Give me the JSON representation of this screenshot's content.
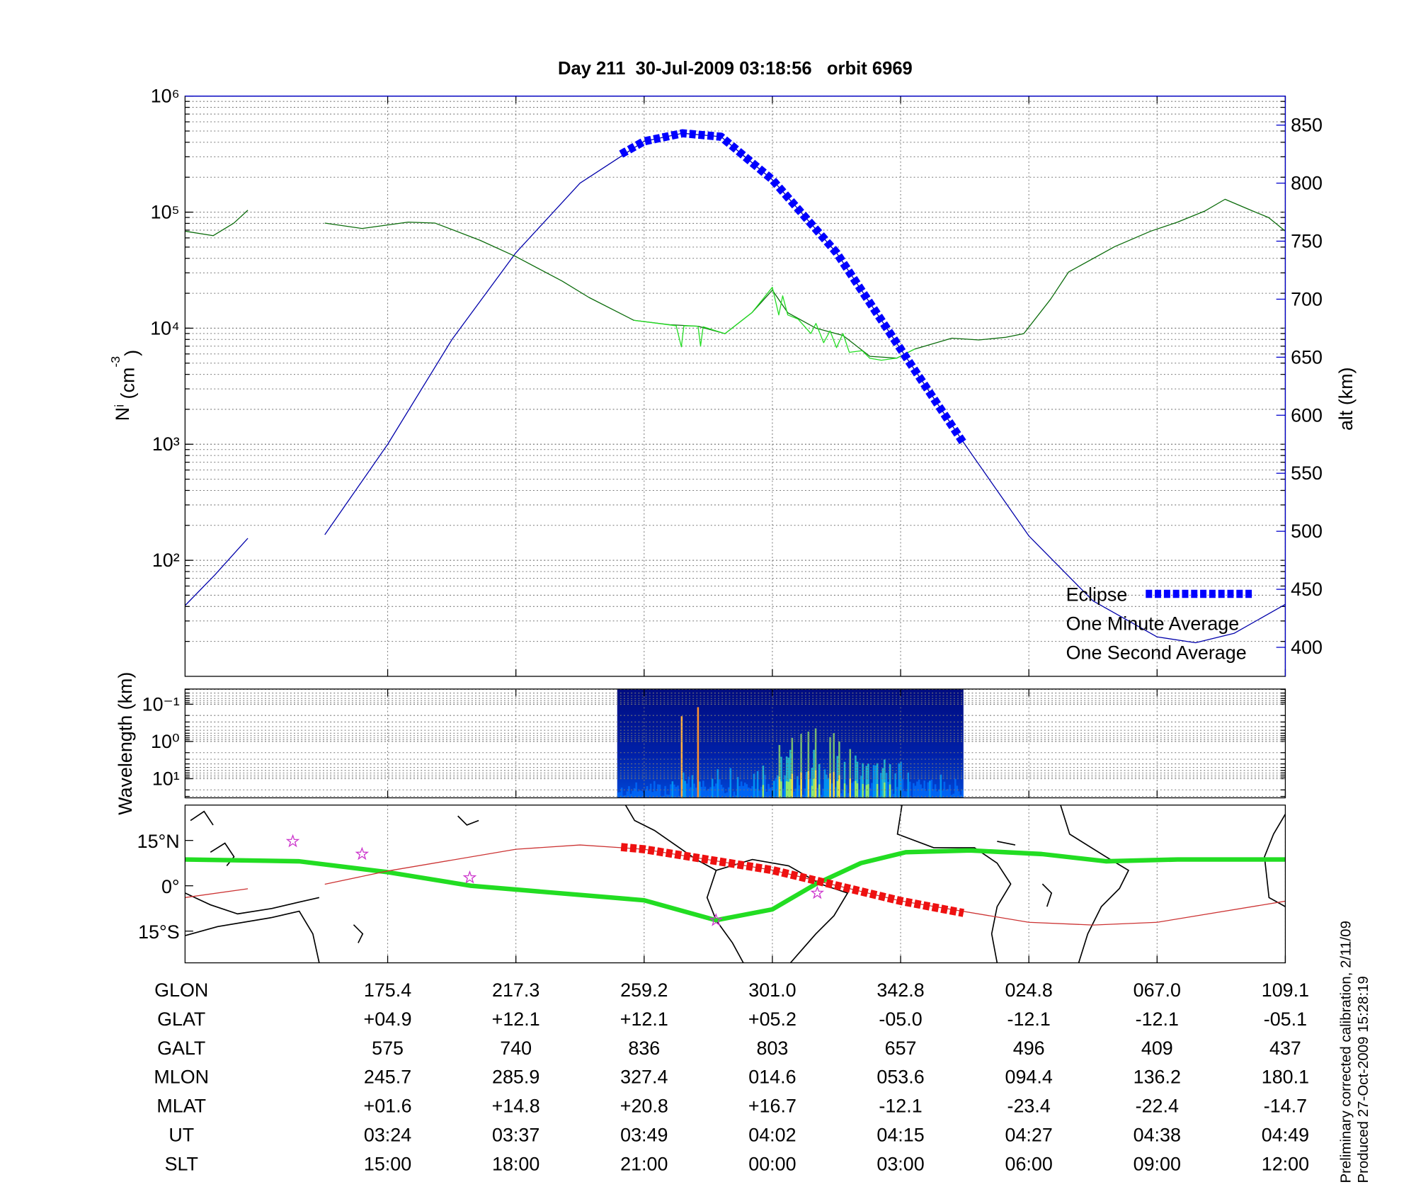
{
  "title": "Day 211  30-Jul-2009 03:18:56   orbit 6969",
  "chart_data": [
    {
      "type": "line",
      "ylabel_parts": [
        "N",
        "i",
        " (cm",
        "-3",
        ")"
      ],
      "y2label": "alt (km)",
      "xlim": [
        -1.58,
        7
      ],
      "xticks": [
        0,
        1,
        2,
        3,
        4,
        5,
        6,
        7
      ],
      "ylim": [
        10,
        1000000
      ],
      "log_y": true,
      "yticks": [
        {
          "value": 100,
          "label": "10²"
        },
        {
          "value": 1000,
          "label": "10³"
        },
        {
          "value": 10000,
          "label": "10⁴"
        },
        {
          "value": 100000,
          "label": "10⁵"
        },
        {
          "value": 1000000,
          "label": "10⁶"
        }
      ],
      "y2lim": [
        375,
        875
      ],
      "y2ticks": [
        400,
        450,
        500,
        550,
        600,
        650,
        700,
        750,
        800,
        850
      ],
      "grid": true,
      "legend": "lower right",
      "series": [
        {
          "name": "Eclipse",
          "color": "#0000ff",
          "style": "squares",
          "axis": "y2",
          "x": [
            1.82,
            2,
            2.3,
            2.6,
            3,
            3.5,
            4,
            4.49
          ],
          "values": [
            825,
            836,
            843,
            840,
            803,
            740,
            657,
            576
          ]
        },
        {
          "name": "One Minute Average",
          "color": "#0a6b0a",
          "text_color": "#000000",
          "x": [
            -1.58,
            -1.36,
            -1.2,
            -1.09,
            -0.8,
            -0.49,
            -0.2,
            0.16,
            0.37,
            0.72,
            1.0,
            1.36,
            1.57,
            1.92,
            2.2,
            2.42,
            2.63,
            2.84,
            3.0,
            3.12,
            3.34,
            3.55,
            3.76,
            3.97,
            4.11,
            4.4,
            4.61,
            4.82,
            4.96,
            5.17,
            5.31,
            5.67,
            5.95,
            6.16,
            6.37,
            6.53,
            6.73,
            6.87,
            7.0
          ],
          "values": [
            68600,
            62700,
            80500,
            104000,
            null,
            80500,
            72300,
            82000,
            80500,
            57300,
            41400,
            25500,
            18400,
            11700,
            10700,
            10400,
            8980,
            13600,
            21300,
            13600,
            10000,
            8660,
            5730,
            5520,
            6610,
            8200,
            7910,
            8350,
            8980,
            17800,
            30500,
            50500,
            68600,
            82000,
            102000,
            129000,
            104000,
            89800,
            68600
          ]
        },
        {
          "name": "One Second Average",
          "color": "#22dd22",
          "x": [
            1.92,
            2.25,
            2.29,
            2.31,
            2.42,
            2.44,
            2.46,
            2.63,
            2.84,
            3.0,
            3.05,
            3.08,
            3.12,
            3.2,
            3.3,
            3.34,
            3.4,
            3.45,
            3.5,
            3.55,
            3.6,
            3.7,
            3.76,
            3.85,
            3.97,
            4.11
          ],
          "values": [
            11700,
            10500,
            6900,
            10500,
            10400,
            7000,
            10300,
            8980,
            13600,
            22500,
            13000,
            19000,
            13000,
            12000,
            9000,
            11000,
            7500,
            9500,
            6800,
            9000,
            6200,
            6400,
            5500,
            5300,
            5520,
            6610
          ]
        },
        {
          "color": "#0000aa",
          "axis": "y2",
          "x": [
            -1.58,
            -1.35,
            -1.09,
            -0.8,
            -0.49,
            0,
            0.5,
            1,
            1.5,
            2,
            2.3,
            2.6,
            3,
            3.5,
            4,
            4.5,
            5,
            5.5,
            6,
            6.3,
            6.6,
            7
          ],
          "values": [
            436,
            462,
            494,
            null,
            497,
            575,
            665,
            740,
            800,
            836,
            843,
            840,
            803,
            740,
            657,
            575,
            496,
            440,
            409,
            404,
            412,
            437
          ]
        }
      ]
    },
    {
      "type": "heatmap",
      "ylabel": "Wavelength (km)",
      "xlim": [
        -1.58,
        7
      ],
      "xticks": [
        0,
        1,
        2,
        3,
        4,
        5,
        6,
        7
      ],
      "ylim": [
        32.7,
        0.039
      ],
      "log_y": true,
      "yticks": [
        {
          "value": 0.1,
          "label": "10⁻¹"
        },
        {
          "value": 1,
          "label": "10⁰"
        },
        {
          "value": 10,
          "label": "10¹"
        }
      ],
      "x": [
        1.79,
        4.49
      ]
    },
    {
      "type": "map",
      "xlim": [
        -1.58,
        7
      ],
      "xticks": [
        0,
        1,
        2,
        3,
        4,
        5,
        6,
        7
      ],
      "ylim": [
        -25.5,
        26.7
      ],
      "yticks": [
        {
          "value": 15,
          "label": "15°N"
        },
        {
          "value": 0,
          "label": "0°"
        },
        {
          "value": -15,
          "label": "15°S"
        }
      ],
      "series": [
        {
          "color": "#22dd22",
          "width": 5,
          "x": [
            -1.58,
            -0.69,
            0,
            0.65,
            2.0,
            2.56,
            3.0,
            3.34,
            3.69,
            4.04,
            4.54,
            5.1,
            5.6,
            6.16,
            7.0
          ],
          "values": [
            8.7,
            8.1,
            4.5,
            0,
            -4.8,
            -11.4,
            -7.8,
            0.6,
            7.5,
            11.1,
            11.7,
            10.5,
            8.1,
            8.7,
            8.7
          ]
        },
        {
          "color": "#cc3333",
          "width": 1,
          "x": [
            -1.58,
            -1.09,
            -0.8,
            -0.49,
            0,
            1,
            1.5,
            2,
            3,
            4,
            5,
            5.5,
            6,
            7
          ],
          "values": [
            -3.9,
            -1.0,
            null,
            0.5,
            4.9,
            12.1,
            13.5,
            12.1,
            5.2,
            -5.0,
            -12.1,
            -13,
            -12.1,
            -5.1
          ]
        },
        {
          "color": "#ee1111",
          "style": "squares",
          "x": [
            1.82,
            2,
            3,
            4,
            4.49
          ],
          "values": [
            12.8,
            12.1,
            5.2,
            -5.0,
            -9.0
          ]
        }
      ],
      "markers": {
        "color": "#cc33cc",
        "x": [
          -0.74,
          -0.2,
          0.64,
          2.56,
          3.35
        ],
        "values": [
          14.7,
          10.5,
          2.7,
          -11.4,
          -2.4
        ]
      }
    }
  ],
  "table": {
    "rows": [
      {
        "label": "GLON",
        "values": [
          "175.4",
          "217.3",
          "259.2",
          "301.0",
          "342.8",
          "024.8",
          "067.0",
          "109.1"
        ]
      },
      {
        "label": "GLAT",
        "values": [
          "+04.9",
          "+12.1",
          "+12.1",
          "+05.2",
          "-05.0",
          "-12.1",
          "-12.1",
          "-05.1"
        ]
      },
      {
        "label": "GALT",
        "values": [
          "575",
          "740",
          "836",
          "803",
          "657",
          "496",
          "409",
          "437"
        ]
      },
      {
        "label": "MLON",
        "values": [
          "245.7",
          "285.9",
          "327.4",
          "014.6",
          "053.6",
          "094.4",
          "136.2",
          "180.1"
        ]
      },
      {
        "label": "MLAT",
        "values": [
          "+01.6",
          "+14.8",
          "+20.8",
          "+16.7",
          "-12.1",
          "-23.4",
          "-22.4",
          "-14.7"
        ]
      },
      {
        "label": "UT",
        "values": [
          "03:24",
          "03:37",
          "03:49",
          "04:02",
          "04:15",
          "04:27",
          "04:38",
          "04:49"
        ]
      },
      {
        "label": "SLT",
        "values": [
          "15:00",
          "18:00",
          "21:00",
          "00:00",
          "03:00",
          "06:00",
          "09:00",
          "12:00"
        ]
      }
    ]
  },
  "footer": [
    "Preliminary corrected calibration, 2/11/09",
    "Produced 27-Oct-2009 15:28:19"
  ]
}
